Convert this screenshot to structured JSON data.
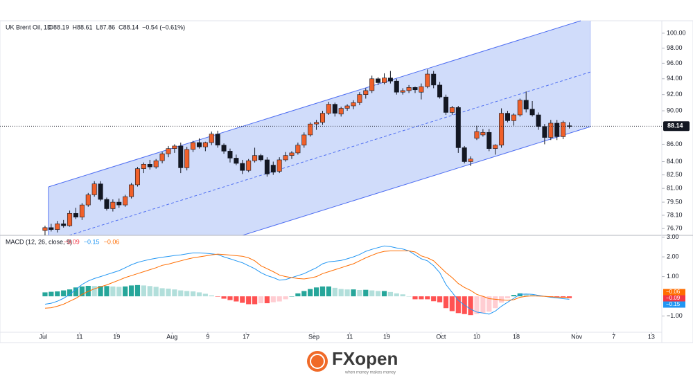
{
  "chart_data": [
    {
      "type": "candlestick",
      "title": "UK Brent Oil, 1D",
      "ohlc_labels": [
        "O88.19",
        "H88.61",
        "L87.86",
        "C88.14"
      ],
      "change_label": "−0.54 (−0.61%)",
      "last_label": "88.14",
      "up_color": "#f0602a",
      "down_color": "#131722",
      "log_scale": true,
      "ylim": [
        76.0,
        101.7
      ],
      "xlim": [
        -7.3,
        100
      ],
      "yticks": [
        {
          "value": 100,
          "label": "100.00"
        },
        {
          "value": 98,
          "label": "98.00"
        },
        {
          "value": 96,
          "label": "96.00"
        },
        {
          "value": 94,
          "label": "94.00"
        },
        {
          "value": 92,
          "label": "92.00"
        },
        {
          "value": 90,
          "label": "90.00"
        },
        {
          "value": 86,
          "label": "86.00"
        },
        {
          "value": 84,
          "label": "84.00"
        },
        {
          "value": 82.5,
          "label": "82.50"
        },
        {
          "value": 81,
          "label": "81.00"
        },
        {
          "value": 79.5,
          "label": "79.50"
        },
        {
          "value": 78.1,
          "label": "78.10"
        },
        {
          "value": 76.7,
          "label": "76.70"
        }
      ],
      "xticks": [
        {
          "value": -0.3,
          "label": "Jul"
        },
        {
          "value": 5.6,
          "label": "11"
        },
        {
          "value": 11.6,
          "label": "19"
        },
        {
          "value": 20.6,
          "label": "Aug"
        },
        {
          "value": 26.4,
          "label": "9"
        },
        {
          "value": 32.6,
          "label": "17"
        },
        {
          "value": 43.6,
          "label": "Sep"
        },
        {
          "value": 49.4,
          "label": "11"
        },
        {
          "value": 55.4,
          "label": "19"
        },
        {
          "value": 64.2,
          "label": "Oct"
        },
        {
          "value": 70,
          "label": "10"
        },
        {
          "value": 76.4,
          "label": "18"
        },
        {
          "value": 86.2,
          "label": "Nov"
        },
        {
          "value": 92.2,
          "label": "7"
        },
        {
          "value": 98.3,
          "label": "13"
        }
      ],
      "candles": [
        [
          76.5,
          77.0,
          76.0,
          76.8
        ],
        [
          76.8,
          77.2,
          76.4,
          76.6
        ],
        [
          76.6,
          77.5,
          76.3,
          77.2
        ],
        [
          77.2,
          77.6,
          76.8,
          77.0
        ],
        [
          77.0,
          78.6,
          76.9,
          78.3
        ],
        [
          78.3,
          78.9,
          77.7,
          77.9
        ],
        [
          77.9,
          79.4,
          77.6,
          79.2
        ],
        [
          79.2,
          80.5,
          79.0,
          80.3
        ],
        [
          80.3,
          81.8,
          80.1,
          81.5
        ],
        [
          81.5,
          81.8,
          79.6,
          79.8
        ],
        [
          79.8,
          80.0,
          78.6,
          78.8
        ],
        [
          78.8,
          79.8,
          78.5,
          79.5
        ],
        [
          79.5,
          79.9,
          78.9,
          79.2
        ],
        [
          79.2,
          80.3,
          79.0,
          80.1
        ],
        [
          80.1,
          81.6,
          79.9,
          81.4
        ],
        [
          81.4,
          83.4,
          81.2,
          83.2
        ],
        [
          83.2,
          83.9,
          82.7,
          83.7
        ],
        [
          83.7,
          84.2,
          83.1,
          83.4
        ],
        [
          83.4,
          84.3,
          83.2,
          84.1
        ],
        [
          84.1,
          85.1,
          83.8,
          84.9
        ],
        [
          84.9,
          85.8,
          84.5,
          85.5
        ],
        [
          85.5,
          86.0,
          85.0,
          85.8
        ],
        [
          85.8,
          86.2,
          82.7,
          83.3
        ],
        [
          83.3,
          85.7,
          83.0,
          85.4
        ],
        [
          85.4,
          86.4,
          85.1,
          86.2
        ],
        [
          86.2,
          86.7,
          85.5,
          85.7
        ],
        [
          85.7,
          86.3,
          85.2,
          86.2
        ],
        [
          86.2,
          87.5,
          85.9,
          87.2
        ],
        [
          87.2,
          87.6,
          85.6,
          85.9
        ],
        [
          85.9,
          86.1,
          84.9,
          85.2
        ],
        [
          85.2,
          85.5,
          83.9,
          84.4
        ],
        [
          84.4,
          84.8,
          83.6,
          83.8
        ],
        [
          83.8,
          84.2,
          82.6,
          83.0
        ],
        [
          83.0,
          84.3,
          82.8,
          84.1
        ],
        [
          84.1,
          85.6,
          83.9,
          84.7
        ],
        [
          84.7,
          84.9,
          84.0,
          84.2
        ],
        [
          84.2,
          84.5,
          82.3,
          82.6
        ],
        [
          83.6,
          84.0,
          82.5,
          82.8
        ],
        [
          82.9,
          84.5,
          82.7,
          84.2
        ],
        [
          84.2,
          85.1,
          84.0,
          84.7
        ],
        [
          84.7,
          85.2,
          84.3,
          85.0
        ],
        [
          85.0,
          86.2,
          84.8,
          85.9
        ],
        [
          85.9,
          87.4,
          85.6,
          87.1
        ],
        [
          87.1,
          88.6,
          86.9,
          88.4
        ],
        [
          88.4,
          88.9,
          87.7,
          88.6
        ],
        [
          88.6,
          90.0,
          88.3,
          89.7
        ],
        [
          89.7,
          91.1,
          89.5,
          90.8
        ],
        [
          90.8,
          91.0,
          89.3,
          89.7
        ],
        [
          89.6,
          90.5,
          89.3,
          90.3
        ],
        [
          90.3,
          90.8,
          90.0,
          90.6
        ],
        [
          90.6,
          91.3,
          90.2,
          91.0
        ],
        [
          91.0,
          92.3,
          90.7,
          92.0
        ],
        [
          92.0,
          92.8,
          91.5,
          92.5
        ],
        [
          92.5,
          94.4,
          92.2,
          94.0
        ],
        [
          94.0,
          94.2,
          93.2,
          93.5
        ],
        [
          93.5,
          94.7,
          93.3,
          94.1
        ],
        [
          94.1,
          95.0,
          93.4,
          93.7
        ],
        [
          93.7,
          94.0,
          92.0,
          92.3
        ],
        [
          92.3,
          92.8,
          92.0,
          92.5
        ],
        [
          92.5,
          93.2,
          92.2,
          92.9
        ],
        [
          92.9,
          93.0,
          92.2,
          92.6
        ],
        [
          92.3,
          93.4,
          91.4,
          93.0
        ],
        [
          93.0,
          95.2,
          92.8,
          94.6
        ],
        [
          94.6,
          95.0,
          92.8,
          93.2
        ],
        [
          93.2,
          93.6,
          91.5,
          91.7
        ],
        [
          91.7,
          92.0,
          89.5,
          89.8
        ],
        [
          89.8,
          90.6,
          89.5,
          90.4
        ],
        [
          90.4,
          90.6,
          85.0,
          85.6
        ],
        [
          85.6,
          85.8,
          83.8,
          84.0
        ],
        [
          84.0,
          84.6,
          83.5,
          84.3
        ],
        [
          86.7,
          88.2,
          86.5,
          87.5
        ],
        [
          87.1,
          87.8,
          86.9,
          87.4
        ],
        [
          87.4,
          87.8,
          85.2,
          85.5
        ],
        [
          85.5,
          86.0,
          84.8,
          85.9
        ],
        [
          85.9,
          90.3,
          85.6,
          89.7
        ],
        [
          89.7,
          90.0,
          88.6,
          88.8
        ],
        [
          88.8,
          89.7,
          88.2,
          89.5
        ],
        [
          89.5,
          91.5,
          89.3,
          91.3
        ],
        [
          91.3,
          92.4,
          89.8,
          90.2
        ],
        [
          90.2,
          91.2,
          89.3,
          89.5
        ],
        [
          89.5,
          89.8,
          87.7,
          88.1
        ],
        [
          88.1,
          88.4,
          86.0,
          86.8
        ],
        [
          86.8,
          88.9,
          86.5,
          88.5
        ],
        [
          88.5,
          88.9,
          86.5,
          86.9
        ],
        [
          86.9,
          88.8,
          86.6,
          88.6
        ],
        [
          88.19,
          88.61,
          87.86,
          88.14
        ]
      ]
    },
    {
      "type": "macd",
      "title": "MACD (12, 26, close, 9)",
      "ylim": [
        -1.82,
        3.09
      ],
      "yticks": [
        {
          "value": 3,
          "label": "3.00"
        },
        {
          "value": 2,
          "label": "2.00"
        },
        {
          "value": 1,
          "label": "1.00"
        },
        {
          "value": -1,
          "label": "−1.00"
        }
      ],
      "histogram_colors": [
        "#26a69a",
        "#b2dfdb",
        "#ff5252",
        "#ffcdd2"
      ],
      "series": [
        {
          "kind": "histogram",
          "color": "#f23645",
          "last_label": "−0.09",
          "values": [
            0.2,
            0.23,
            0.25,
            0.3,
            0.35,
            0.45,
            0.5,
            0.53,
            0.52,
            0.52,
            0.52,
            0.5,
            0.48,
            0.5,
            0.55,
            0.57,
            0.55,
            0.52,
            0.48,
            0.41,
            0.39,
            0.35,
            0.3,
            0.27,
            0.25,
            0.2,
            0.13,
            0.05,
            -0.02,
            -0.12,
            -0.19,
            -0.26,
            -0.33,
            -0.4,
            -0.4,
            -0.35,
            -0.35,
            -0.3,
            -0.26,
            -0.15,
            0,
            0.15,
            0.27,
            0.37,
            0.45,
            0.5,
            0.5,
            0.43,
            0.37,
            0.35,
            0.35,
            0.32,
            0.33,
            0.3,
            0.27,
            0.27,
            0.22,
            0.15,
            0.1,
            0,
            -0.15,
            -0.15,
            -0.15,
            -0.25,
            -0.3,
            -0.6,
            -0.75,
            -0.85,
            -0.9,
            -0.95,
            -0.9,
            -0.85,
            -0.78,
            -0.6,
            -0.32,
            -0.1,
            0.07,
            0.15,
            0.12,
            0.08,
            0.04,
            0,
            -0.03,
            -0.04,
            -0.07,
            -0.09
          ]
        },
        {
          "kind": "line",
          "color": "#2196f3",
          "last_label": "−0.15",
          "values": [
            -0.4,
            -0.35,
            -0.25,
            -0.1,
            0.1,
            0.35,
            0.6,
            0.78,
            0.9,
            1.0,
            1.1,
            1.2,
            1.3,
            1.45,
            1.6,
            1.72,
            1.8,
            1.87,
            1.93,
            1.98,
            2.02,
            2.07,
            2.1,
            2.15,
            2.2,
            2.2,
            2.18,
            2.15,
            2.12,
            2.0,
            1.9,
            1.8,
            1.7,
            1.55,
            1.4,
            1.2,
            1.05,
            0.95,
            0.82,
            0.85,
            0.95,
            1.05,
            1.15,
            1.3,
            1.45,
            1.65,
            1.75,
            1.78,
            1.82,
            1.9,
            2.0,
            2.12,
            2.28,
            2.38,
            2.47,
            2.55,
            2.52,
            2.45,
            2.4,
            2.3,
            2.1,
            1.9,
            1.8,
            1.55,
            1.2,
            0.6,
            0.2,
            -0.2,
            -0.45,
            -0.65,
            -0.8,
            -0.85,
            -0.9,
            -0.75,
            -0.5,
            -0.3,
            -0.1,
            0.1,
            0.12,
            0.1,
            0.05,
            0.0,
            -0.05,
            -0.08,
            -0.12,
            -0.15
          ]
        },
        {
          "kind": "line",
          "color": "#ff6d00",
          "last_label": "−0.06",
          "values": [
            -0.6,
            -0.58,
            -0.5,
            -0.4,
            -0.25,
            -0.1,
            0.1,
            0.25,
            0.38,
            0.48,
            0.58,
            0.7,
            0.82,
            0.95,
            1.05,
            1.15,
            1.25,
            1.35,
            1.45,
            1.57,
            1.63,
            1.72,
            1.8,
            1.88,
            1.95,
            2.0,
            2.05,
            2.1,
            2.14,
            2.12,
            2.09,
            2.06,
            2.03,
            1.95,
            1.8,
            1.55,
            1.4,
            1.25,
            1.08,
            1.0,
            0.95,
            0.9,
            0.88,
            0.93,
            1.0,
            1.15,
            1.25,
            1.35,
            1.45,
            1.55,
            1.65,
            1.8,
            1.95,
            2.08,
            2.2,
            2.28,
            2.3,
            2.3,
            2.3,
            2.3,
            2.25,
            2.05,
            1.95,
            1.8,
            1.5,
            1.2,
            0.95,
            0.65,
            0.45,
            0.3,
            0.1,
            0.0,
            -0.12,
            -0.15,
            -0.18,
            -0.2,
            -0.17,
            -0.05,
            0.0,
            0.02,
            0.01,
            0.0,
            -0.02,
            -0.04,
            -0.05,
            -0.06
          ]
        }
      ]
    }
  ],
  "footer": {
    "brand": "FXopen",
    "tagline": "when money makes money"
  }
}
